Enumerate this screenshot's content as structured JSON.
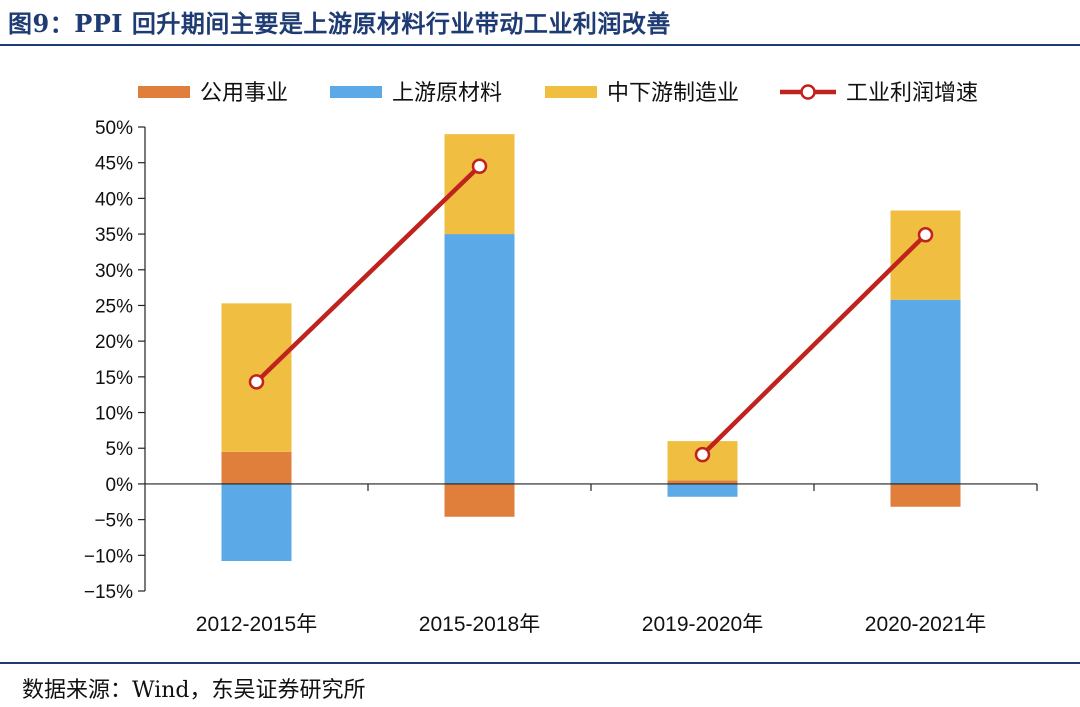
{
  "figure": {
    "title": "图9：PPI 回升期间主要是上游原材料行业带动工业利润改善",
    "source": "数据来源：Wind，东吴证券研究所"
  },
  "chart_data": {
    "type": "bar",
    "stacked": true,
    "categories": [
      "2012-2015年",
      "2015-2018年",
      "2019-2020年",
      "2020-2021年"
    ],
    "series": [
      {
        "name": "公用事业",
        "kind": "bar",
        "color": "#E07E3C",
        "values": [
          4.5,
          -4.6,
          0.5,
          -3.2
        ]
      },
      {
        "name": "上游原材料",
        "kind": "bar",
        "color": "#5BA9E6",
        "values": [
          -10.8,
          35.0,
          -1.8,
          25.8
        ]
      },
      {
        "name": "中下游制造业",
        "kind": "bar",
        "color": "#F0BF41",
        "values": [
          20.8,
          14.0,
          5.5,
          12.5
        ]
      },
      {
        "name": "工业利润增速",
        "kind": "line",
        "color": "#C0231D",
        "values": [
          14.3,
          44.5,
          4.1,
          34.9
        ]
      }
    ],
    "ylim": [
      -15,
      50
    ],
    "yticks": [
      -15,
      -10,
      -5,
      0,
      5,
      10,
      15,
      20,
      25,
      30,
      35,
      40,
      45,
      50
    ],
    "ytick_labels": [
      "−15%",
      "−10%",
      "−5%",
      "0%",
      "5%",
      "10%",
      "15%",
      "20%",
      "25%",
      "30%",
      "35%",
      "40%",
      "45%",
      "50%"
    ],
    "xlabel": "",
    "ylabel": "",
    "legend_position": "top",
    "grid": false
  }
}
